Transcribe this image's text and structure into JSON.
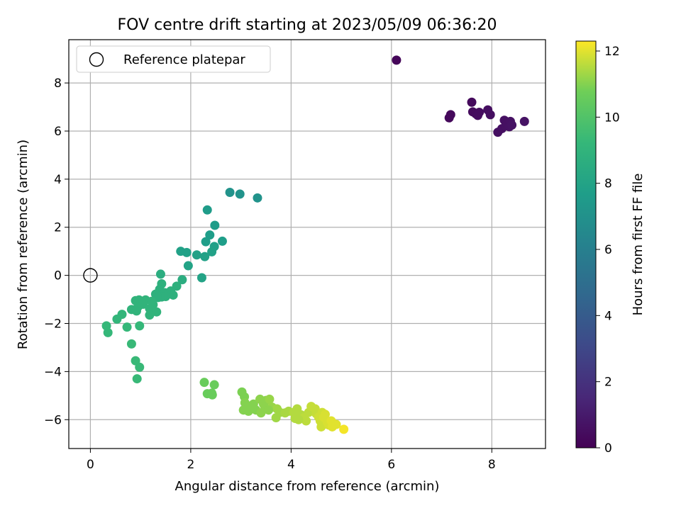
{
  "chart_data": {
    "type": "scatter",
    "title": "FOV centre drift starting at 2023/05/09 06:36:20",
    "xlabel": "Angular distance from reference (arcmin)",
    "ylabel": "Rotation from reference (arcmin)",
    "xlim": [
      -0.43,
      9.07
    ],
    "ylim": [
      -7.2,
      9.8
    ],
    "xticks": [
      0,
      2,
      4,
      6,
      8
    ],
    "yticks": [
      -6,
      -4,
      -2,
      0,
      2,
      4,
      6,
      8
    ],
    "grid": true,
    "legend": {
      "position": "top-left",
      "label": "Reference platepar"
    },
    "reference_point": {
      "x": 0,
      "y": 0
    },
    "colorbar": {
      "label": "Hours from first FF file",
      "min": 0,
      "max": 12.3,
      "ticks": [
        0,
        2,
        4,
        6,
        8,
        10,
        12
      ],
      "colormap": "viridis"
    },
    "points": [
      [
        6.1,
        8.95,
        0.2
      ],
      [
        7.15,
        6.55,
        0.3
      ],
      [
        7.18,
        6.68,
        0.3
      ],
      [
        7.6,
        7.2,
        0.35
      ],
      [
        7.62,
        6.8,
        0.4
      ],
      [
        7.68,
        6.72,
        0.4
      ],
      [
        7.72,
        6.65,
        0.45
      ],
      [
        7.75,
        6.78,
        0.45
      ],
      [
        7.92,
        6.88,
        0.5
      ],
      [
        7.97,
        6.68,
        0.5
      ],
      [
        8.12,
        5.95,
        0.55
      ],
      [
        8.2,
        6.1,
        0.55
      ],
      [
        8.25,
        6.45,
        0.6
      ],
      [
        8.28,
        6.22,
        0.6
      ],
      [
        8.3,
        6.3,
        0.6
      ],
      [
        8.35,
        6.18,
        0.65
      ],
      [
        8.37,
        6.4,
        0.65
      ],
      [
        8.4,
        6.25,
        0.7
      ],
      [
        8.65,
        6.4,
        0.7
      ],
      [
        2.78,
        3.45,
        7.1
      ],
      [
        2.98,
        3.38,
        7.1
      ],
      [
        3.33,
        3.22,
        7.1
      ],
      [
        2.33,
        2.72,
        7.6
      ],
      [
        2.48,
        2.08,
        7.6
      ],
      [
        2.38,
        1.68,
        7.7
      ],
      [
        2.63,
        1.42,
        7.7
      ],
      [
        2.3,
        1.4,
        7.7
      ],
      [
        2.47,
        1.2,
        7.8
      ],
      [
        1.8,
        1.0,
        7.9
      ],
      [
        2.42,
        0.98,
        7.9
      ],
      [
        1.92,
        0.95,
        7.9
      ],
      [
        2.12,
        0.85,
        7.9
      ],
      [
        2.28,
        0.78,
        7.9
      ],
      [
        1.95,
        0.4,
        8.0
      ],
      [
        2.22,
        -0.1,
        8.0
      ],
      [
        1.4,
        0.05,
        8.6
      ],
      [
        1.83,
        -0.18,
        8.6
      ],
      [
        1.42,
        -0.35,
        8.8
      ],
      [
        1.72,
        -0.45,
        8.8
      ],
      [
        1.38,
        -0.58,
        8.8
      ],
      [
        1.6,
        -0.65,
        8.8
      ],
      [
        1.48,
        -0.72,
        8.8
      ],
      [
        1.3,
        -0.78,
        8.8
      ],
      [
        1.55,
        -0.78,
        8.8
      ],
      [
        1.65,
        -0.82,
        8.8
      ],
      [
        1.42,
        -0.9,
        8.8
      ],
      [
        1.35,
        -0.92,
        8.8
      ],
      [
        1.5,
        -0.88,
        8.8
      ],
      [
        0.9,
        -1.05,
        9.0
      ],
      [
        0.97,
        -1.02,
        9.0
      ],
      [
        1.1,
        -1.02,
        9.0
      ],
      [
        1.22,
        -1.08,
        9.0
      ],
      [
        1.05,
        -1.2,
        9.0
      ],
      [
        1.25,
        -1.22,
        9.0
      ],
      [
        0.95,
        -1.3,
        9.0
      ],
      [
        1.18,
        -1.38,
        9.0
      ],
      [
        0.82,
        -1.42,
        9.0
      ],
      [
        0.92,
        -1.48,
        9.0
      ],
      [
        1.32,
        -1.52,
        9.0
      ],
      [
        1.18,
        -1.65,
        9.0
      ],
      [
        0.63,
        -1.62,
        9.1
      ],
      [
        0.53,
        -1.82,
        9.1
      ],
      [
        0.32,
        -2.1,
        9.2
      ],
      [
        0.73,
        -2.15,
        9.2
      ],
      [
        0.98,
        -2.1,
        9.2
      ],
      [
        0.35,
        -2.38,
        9.2
      ],
      [
        0.82,
        -2.85,
        9.3
      ],
      [
        0.9,
        -3.55,
        9.3
      ],
      [
        0.98,
        -3.82,
        9.3
      ],
      [
        0.93,
        -4.3,
        9.3
      ],
      [
        2.27,
        -4.45,
        10.6
      ],
      [
        2.47,
        -4.55,
        10.6
      ],
      [
        2.33,
        -4.92,
        10.6
      ],
      [
        2.42,
        -4.9,
        10.6
      ],
      [
        2.43,
        -4.97,
        10.6
      ],
      [
        3.02,
        -4.85,
        10.9
      ],
      [
        3.07,
        -5.05,
        10.9
      ],
      [
        3.08,
        -5.3,
        11.0
      ],
      [
        3.15,
        -5.45,
        11.0
      ],
      [
        3.05,
        -5.6,
        11.0
      ],
      [
        3.25,
        -5.35,
        11.0
      ],
      [
        3.3,
        -5.6,
        11.0
      ],
      [
        3.38,
        -5.15,
        11.1
      ],
      [
        3.45,
        -5.35,
        11.1
      ],
      [
        3.5,
        -5.2,
        11.1
      ],
      [
        3.4,
        -5.72,
        11.1
      ],
      [
        3.48,
        -5.5,
        11.1
      ],
      [
        3.57,
        -5.15,
        11.2
      ],
      [
        3.62,
        -5.48,
        11.2
      ],
      [
        3.7,
        -5.92,
        11.3
      ],
      [
        3.72,
        -5.55,
        11.3
      ],
      [
        3.78,
        -5.7,
        11.3
      ],
      [
        3.88,
        -5.72,
        11.4
      ],
      [
        3.95,
        -5.65,
        11.4
      ],
      [
        4.05,
        -5.7,
        11.5
      ],
      [
        4.08,
        -5.95,
        11.5
      ],
      [
        4.12,
        -5.55,
        11.5
      ],
      [
        4.2,
        -5.8,
        11.5
      ],
      [
        4.25,
        -5.92,
        11.6
      ],
      [
        4.3,
        -6.05,
        11.6
      ],
      [
        4.35,
        -5.7,
        11.6
      ],
      [
        4.4,
        -5.45,
        11.7
      ],
      [
        4.48,
        -5.55,
        11.7
      ],
      [
        4.5,
        -5.75,
        11.7
      ],
      [
        4.55,
        -5.9,
        11.8
      ],
      [
        4.58,
        -6.05,
        11.8
      ],
      [
        4.6,
        -6.3,
        11.8
      ],
      [
        4.62,
        -5.7,
        11.8
      ],
      [
        4.65,
        -5.9,
        11.9
      ],
      [
        4.68,
        -5.78,
        11.9
      ],
      [
        4.72,
        -6.1,
        11.9
      ],
      [
        4.75,
        -6.22,
        11.9
      ],
      [
        4.8,
        -6.05,
        12.0
      ],
      [
        4.82,
        -6.3,
        12.0
      ],
      [
        4.9,
        -6.2,
        12.0
      ],
      [
        5.05,
        -6.4,
        12.2
      ],
      [
        3.15,
        -5.65,
        11.0
      ],
      [
        3.55,
        -5.6,
        11.1
      ],
      [
        4.15,
        -6.0,
        11.5
      ]
    ]
  }
}
